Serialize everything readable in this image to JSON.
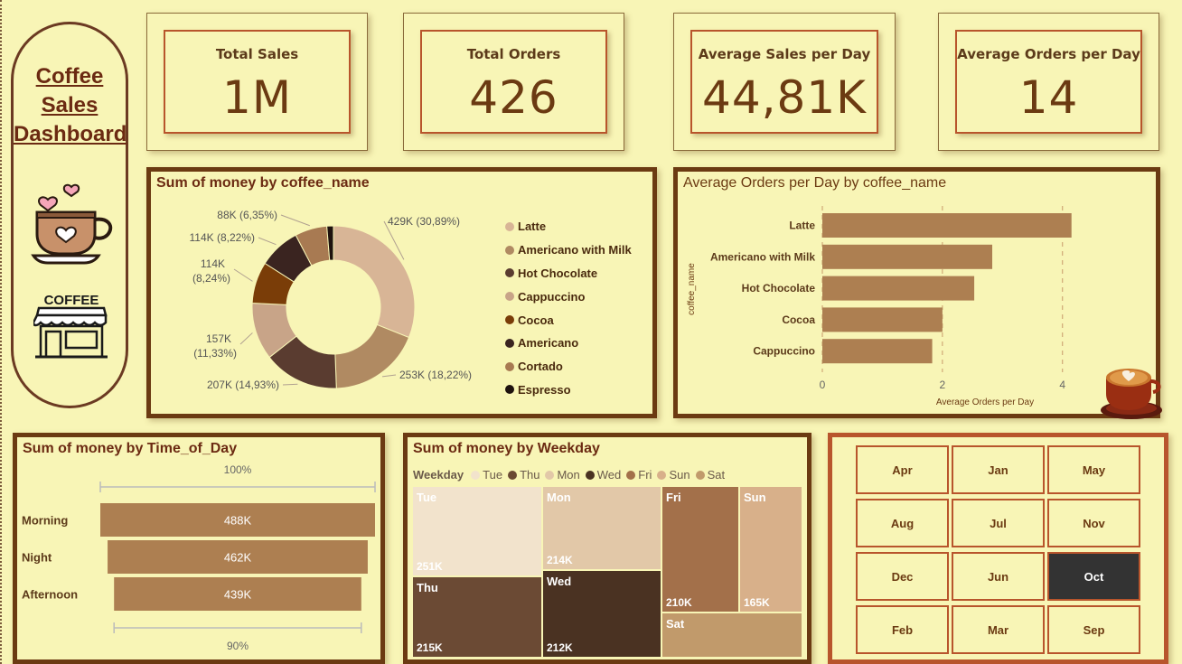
{
  "dashboard": {
    "title_line1": "Coffee",
    "title_line2": "Sales",
    "title_line3": "Dashboard"
  },
  "kpis": [
    {
      "label": "Total Sales",
      "value": "1M"
    },
    {
      "label": "Total Orders",
      "value": "426"
    },
    {
      "label": "Average Sales per Day",
      "value": "44,81K"
    },
    {
      "label": "Average Orders per Day",
      "value": "14"
    }
  ],
  "colors": {
    "background": "#f8f5b6",
    "panel_border": "#6b3a12",
    "accent_border": "#b8552c",
    "bar": "#ad7f51",
    "selected_month": "#333333"
  },
  "icons": {
    "cup": "coffee-cup-hearts-icon",
    "shop": "coffee-shop-icon",
    "latte": "latte-art-cup-icon"
  },
  "chart_data": [
    {
      "type": "pie",
      "subtype": "donut",
      "title": "Sum of money by coffee_name",
      "slices": [
        {
          "name": "Latte",
          "value": 429,
          "label": "429K (30,89%)",
          "color": "#d8b596"
        },
        {
          "name": "Americano with Milk",
          "value": 253,
          "label": "253K (18,22%)",
          "color": "#b08a62"
        },
        {
          "name": "Hot Chocolate",
          "value": 207,
          "label": "207K (14,93%)",
          "color": "#5a3c30"
        },
        {
          "name": "Cappuccino",
          "value": 157,
          "label_line1": "157K",
          "label_line2": "(11,33%)",
          "color": "#c8a488"
        },
        {
          "name": "Cocoa",
          "value": 114,
          "label_line1": "114K",
          "label_line2": "(8,24%)",
          "color": "#7a3d08"
        },
        {
          "name": "Americano",
          "value": 114,
          "label": "114K (8,22%)",
          "color": "#3a2420"
        },
        {
          "name": "Cortado",
          "value": 88,
          "label": "88K (6,35%)",
          "color": "#a87a52"
        },
        {
          "name": "Espresso",
          "value": 18,
          "color": "#1e120e"
        }
      ]
    },
    {
      "type": "bar",
      "orientation": "horizontal",
      "title": "Average Orders per Day by coffee_name",
      "xlabel": "Average Orders per Day",
      "ylabel": "coffee_name",
      "categories": [
        "Latte",
        "Americano with Milk",
        "Hot Chocolate",
        "Cocoa",
        "Cappuccino"
      ],
      "values": [
        4.15,
        2.83,
        2.53,
        2.0,
        1.83
      ],
      "xlim": [
        0,
        4.35
      ],
      "xticks": [
        "0",
        "2",
        "4"
      ],
      "gridlines": "dashed"
    },
    {
      "type": "bar",
      "orientation": "horizontal",
      "title": "Sum of money by Time_of_Day",
      "categories": [
        "Morning",
        "Night",
        "Afternoon"
      ],
      "values": [
        488,
        462,
        439
      ],
      "value_labels": [
        "488K",
        "462K",
        "439K"
      ],
      "top_scale_label": "100%",
      "bottom_scale_label": "90%"
    },
    {
      "type": "treemap",
      "title": "Sum of money by Weekday",
      "legend_title": "Weekday",
      "legend": [
        "Tue",
        "Thu",
        "Mon",
        "Wed",
        "Fri",
        "Sun",
        "Sat"
      ],
      "tiles": [
        {
          "name": "Tue",
          "value_label": "251K",
          "color": "#f2e3cc",
          "label_color": "#ffffff"
        },
        {
          "name": "Thu",
          "value_label": "215K",
          "color": "#6b4a34"
        },
        {
          "name": "Mon",
          "value_label": "214K",
          "color": "#e2c8a8"
        },
        {
          "name": "Wed",
          "value_label": "212K",
          "color": "#4a3222"
        },
        {
          "name": "Fri",
          "value_label": "210K",
          "color": "#a3704a"
        },
        {
          "name": "Sun",
          "value_label": "165K",
          "color": "#d8b08a"
        },
        {
          "name": "Sat",
          "value_label": "",
          "color": "#c19a6b"
        }
      ]
    }
  ],
  "month_slicer": {
    "months": [
      "Apr",
      "Jan",
      "May",
      "Aug",
      "Jul",
      "Nov",
      "Dec",
      "Jun",
      "Oct",
      "Feb",
      "Mar",
      "Sep"
    ],
    "selected": "Oct"
  }
}
